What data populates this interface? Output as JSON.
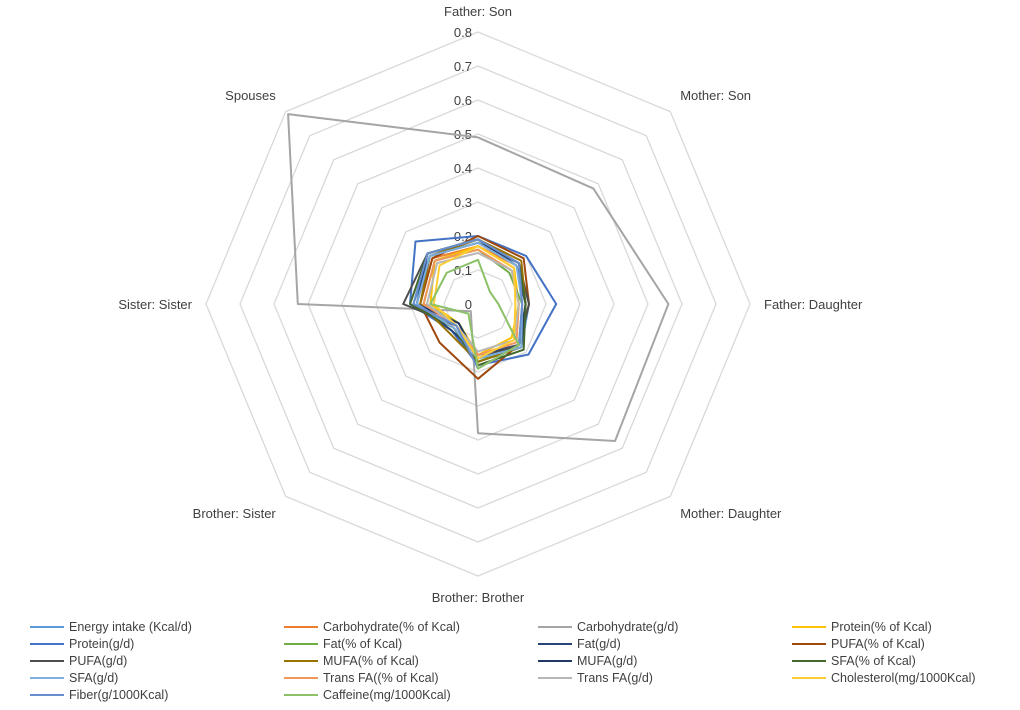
{
  "chart_data": {
    "type": "radar",
    "title": "",
    "axes": [
      "Father: Son",
      "Mother: Son",
      "Father: Daughter",
      "Mother: Daughter",
      "Brother: Brother",
      "Brother: Sister",
      "Sister: Sister",
      "Spouses"
    ],
    "rmax": 0.8,
    "ticks": [
      "0",
      "0.1",
      "0.2",
      "0.3",
      "0.4",
      "0.5",
      "0.6",
      "0.7",
      "0.8"
    ],
    "grid": true,
    "legend_position": "bottom",
    "series": [
      {
        "name": "Energy intake (Kcal/d)",
        "color": "#5b9bd5",
        "values": [
          0.18,
          0.17,
          0.15,
          0.18,
          0.17,
          0.11,
          0.19,
          0.2
        ]
      },
      {
        "name": "Carbohydrate(% of Kcal)",
        "color": "#ed7d31",
        "values": [
          0.17,
          0.16,
          0.14,
          0.17,
          0.16,
          0.1,
          0.17,
          0.19
        ]
      },
      {
        "name": "Carbohydrate(g/d)",
        "color": "#a5a5a5",
        "values": [
          0.49,
          0.48,
          0.56,
          0.57,
          0.38,
          0.03,
          0.53,
          0.79
        ]
      },
      {
        "name": "Protein(% of Kcal)",
        "color": "#ffc000",
        "values": [
          0.17,
          0.15,
          0.12,
          0.14,
          0.15,
          0.08,
          0.14,
          0.18
        ]
      },
      {
        "name": "Protein(g/d)",
        "color": "#4472c4",
        "values": [
          0.2,
          0.2,
          0.23,
          0.21,
          0.18,
          0.11,
          0.2,
          0.26
        ]
      },
      {
        "name": "Fat(% of Kcal)",
        "color": "#70ad47",
        "values": [
          0.16,
          0.13,
          0.13,
          0.17,
          0.17,
          0.08,
          0.16,
          0.18
        ]
      },
      {
        "name": "Fat(g/d)",
        "color": "#264478",
        "values": [
          0.19,
          0.16,
          0.14,
          0.17,
          0.15,
          0.11,
          0.18,
          0.21
        ]
      },
      {
        "name": "PUFA(% of Kcal)",
        "color": "#9e480e",
        "values": [
          0.2,
          0.19,
          0.15,
          0.17,
          0.22,
          0.16,
          0.17,
          0.19
        ]
      },
      {
        "name": "PUFA(g/d)",
        "color": "#4d4d4d",
        "values": [
          0.19,
          0.17,
          0.15,
          0.17,
          0.16,
          0.09,
          0.22,
          0.21
        ]
      },
      {
        "name": "MUFA(% of Kcal)",
        "color": "#997300",
        "values": [
          0.19,
          0.18,
          0.14,
          0.18,
          0.17,
          0.12,
          0.17,
          0.2
        ]
      },
      {
        "name": "MUFA(g/d)",
        "color": "#203864",
        "values": [
          0.18,
          0.17,
          0.14,
          0.18,
          0.16,
          0.08,
          0.18,
          0.2
        ]
      },
      {
        "name": "SFA(% of Kcal)",
        "color": "#43682b",
        "values": [
          0.19,
          0.17,
          0.14,
          0.19,
          0.18,
          0.1,
          0.2,
          0.21
        ]
      },
      {
        "name": "SFA(g/d)",
        "color": "#7cafdd",
        "values": [
          0.18,
          0.16,
          0.13,
          0.18,
          0.16,
          0.1,
          0.18,
          0.2
        ]
      },
      {
        "name": "Trans FA((% of Kcal)",
        "color": "#f1975a",
        "values": [
          0.16,
          0.14,
          0.12,
          0.16,
          0.15,
          0.09,
          0.16,
          0.18
        ]
      },
      {
        "name": "Trans FA(g/d)",
        "color": "#b7b7b7",
        "values": [
          0.15,
          0.14,
          0.12,
          0.15,
          0.14,
          0.09,
          0.15,
          0.17
        ]
      },
      {
        "name": "Cholesterol(mg/1000Kcal)",
        "color": "#ffcd33",
        "values": [
          0.17,
          0.15,
          0.11,
          0.15,
          0.16,
          0.09,
          0.13,
          0.16
        ]
      },
      {
        "name": "Fiber(g/1000Kcal)",
        "color": "#698ed0",
        "values": [
          0.19,
          0.17,
          0.13,
          0.17,
          0.19,
          0.09,
          0.19,
          0.21
        ]
      },
      {
        "name": "Caffeine(mg/1000Kcal)",
        "color": "#8cc168",
        "values": [
          0.13,
          0.05,
          0.06,
          0.17,
          0.19,
          0.04,
          0.14,
          0.13
        ]
      }
    ]
  }
}
